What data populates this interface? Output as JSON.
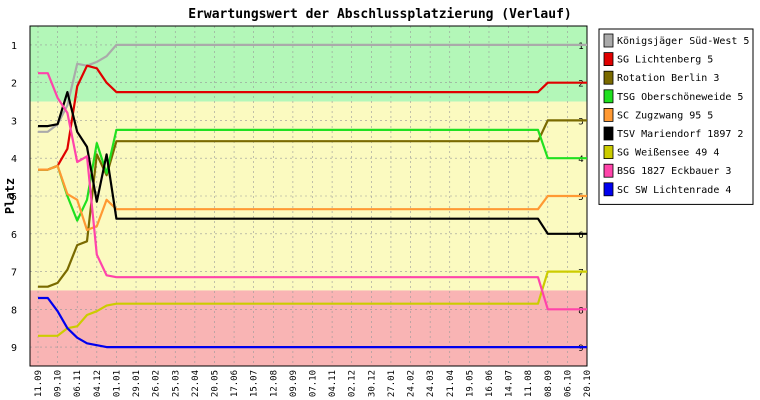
{
  "chart_data": {
    "type": "line",
    "title": "Erwartungswert der Abschlussplatzierung (Verlauf)",
    "xlabel": "",
    "ylabel": "Platz",
    "ylim": [
      1,
      9
    ],
    "y_inverted": true,
    "y_ticks": [
      "1",
      "2",
      "3",
      "4",
      "5",
      "6",
      "7",
      "8",
      "9"
    ],
    "categories": [
      "11.09",
      "09.10",
      "06.11",
      "04.12",
      "01.01",
      "29.01",
      "26.02",
      "25.03",
      "22.04",
      "20.05",
      "17.06",
      "15.07",
      "12.08",
      "09.09",
      "07.10",
      "04.11",
      "02.12",
      "30.12",
      "27.01",
      "24.02",
      "24.03",
      "21.04",
      "19.05",
      "16.06",
      "14.07",
      "11.08",
      "08.09",
      "06.10",
      "20.10"
    ],
    "x": [
      0,
      0.5,
      1,
      1.5,
      2,
      2.5,
      3,
      3.5,
      4,
      4.5,
      5,
      5.5,
      6,
      7,
      8,
      9,
      10,
      11,
      12,
      13,
      14,
      15,
      16,
      17,
      18,
      19,
      20,
      21,
      22,
      23,
      24,
      25,
      25.5,
      26,
      27,
      28
    ],
    "zones": [
      {
        "from": 0.5,
        "to": 2.5,
        "color": "#b3f7b8"
      },
      {
        "from": 2.5,
        "to": 7.5,
        "color": "#fbfac0"
      },
      {
        "from": 7.5,
        "to": 9.5,
        "color": "#f9b4b4"
      }
    ],
    "series": [
      {
        "name": "Königsjäger Süd-West 5",
        "color": "#aaaaaa",
        "values": [
          3.3,
          3.3,
          3.1,
          2.6,
          1.5,
          1.55,
          1.45,
          1.3,
          1.0,
          1,
          1,
          1,
          1,
          1,
          1,
          1,
          1,
          1,
          1,
          1,
          1,
          1,
          1,
          1,
          1,
          1,
          1,
          1,
          1,
          1,
          1,
          1,
          1,
          1,
          1,
          1
        ]
      },
      {
        "name": "SG Lichtenberg 5",
        "color": "#e00000",
        "values": [
          4.3,
          4.3,
          4.2,
          3.75,
          2.1,
          1.55,
          1.62,
          2.0,
          2.25,
          2.25,
          2.25,
          2.25,
          2.25,
          2.25,
          2.25,
          2.25,
          2.25,
          2.25,
          2.25,
          2.25,
          2.25,
          2.25,
          2.25,
          2.25,
          2.25,
          2.25,
          2.25,
          2.25,
          2.25,
          2.25,
          2.25,
          2.25,
          2.25,
          2.0,
          2.0,
          2.0
        ]
      },
      {
        "name": "Rotation Berlin 3",
        "color": "#7a6a00",
        "values": [
          7.4,
          7.4,
          7.3,
          6.95,
          6.3,
          6.2,
          3.9,
          4.45,
          3.55,
          3.55,
          3.55,
          3.55,
          3.55,
          3.55,
          3.55,
          3.55,
          3.55,
          3.55,
          3.55,
          3.55,
          3.55,
          3.55,
          3.55,
          3.55,
          3.55,
          3.55,
          3.55,
          3.55,
          3.55,
          3.55,
          3.55,
          3.55,
          3.55,
          3.0,
          3.0,
          3.0
        ]
      },
      {
        "name": "TSG Oberschöneweide 5",
        "color": "#20e020",
        "values": [
          4.3,
          4.3,
          4.2,
          5.0,
          5.65,
          5.1,
          3.6,
          4.4,
          3.25,
          3.25,
          3.25,
          3.25,
          3.25,
          3.25,
          3.25,
          3.25,
          3.25,
          3.25,
          3.25,
          3.25,
          3.25,
          3.25,
          3.25,
          3.25,
          3.25,
          3.25,
          3.25,
          3.25,
          3.25,
          3.25,
          3.25,
          3.25,
          3.25,
          4.0,
          4.0,
          4.0
        ]
      },
      {
        "name": "SC Zugzwang 95 5",
        "color": "#ff9933",
        "values": [
          4.3,
          4.3,
          4.2,
          4.95,
          5.1,
          5.9,
          5.8,
          5.1,
          5.35,
          5.35,
          5.35,
          5.35,
          5.35,
          5.35,
          5.35,
          5.35,
          5.35,
          5.35,
          5.35,
          5.35,
          5.35,
          5.35,
          5.35,
          5.35,
          5.35,
          5.35,
          5.35,
          5.35,
          5.35,
          5.35,
          5.35,
          5.35,
          5.35,
          5.0,
          5.0,
          5.0
        ]
      },
      {
        "name": "TSV Mariendorf 1897 2",
        "color": "#000000",
        "values": [
          3.15,
          3.15,
          3.1,
          2.25,
          3.3,
          3.7,
          5.15,
          3.9,
          5.6,
          5.6,
          5.6,
          5.6,
          5.6,
          5.6,
          5.6,
          5.6,
          5.6,
          5.6,
          5.6,
          5.6,
          5.6,
          5.6,
          5.6,
          5.6,
          5.6,
          5.6,
          5.6,
          5.6,
          5.6,
          5.6,
          5.6,
          5.6,
          5.6,
          6.0,
          6.0,
          6.0
        ]
      },
      {
        "name": "SG Weißensee 49 4",
        "color": "#cccc00",
        "values": [
          8.7,
          8.7,
          8.7,
          8.5,
          8.45,
          8.15,
          8.05,
          7.9,
          7.85,
          7.85,
          7.85,
          7.85,
          7.85,
          7.85,
          7.85,
          7.85,
          7.85,
          7.85,
          7.85,
          7.85,
          7.85,
          7.85,
          7.85,
          7.85,
          7.85,
          7.85,
          7.85,
          7.85,
          7.85,
          7.85,
          7.85,
          7.85,
          7.85,
          7.0,
          7.0,
          7.0
        ]
      },
      {
        "name": "BSG 1827 Eckbauer 3",
        "color": "#ff44aa",
        "values": [
          1.75,
          1.75,
          2.4,
          2.8,
          4.1,
          3.95,
          6.55,
          7.1,
          7.15,
          7.15,
          7.15,
          7.15,
          7.15,
          7.15,
          7.15,
          7.15,
          7.15,
          7.15,
          7.15,
          7.15,
          7.15,
          7.15,
          7.15,
          7.15,
          7.15,
          7.15,
          7.15,
          7.15,
          7.15,
          7.15,
          7.15,
          7.15,
          7.15,
          8.0,
          8.0,
          8.0
        ]
      },
      {
        "name": "SC SW Lichtenrade 4",
        "color": "#0000ee",
        "values": [
          7.7,
          7.7,
          8.05,
          8.5,
          8.75,
          8.9,
          8.95,
          9.0,
          9.0,
          9.0,
          9.0,
          9.0,
          9.0,
          9.0,
          9.0,
          9.0,
          9.0,
          9.0,
          9.0,
          9.0,
          9.0,
          9.0,
          9.0,
          9.0,
          9.0,
          9.0,
          9.0,
          9.0,
          9.0,
          9.0,
          9.0,
          9.0,
          9.0,
          9.0,
          9.0,
          9.0
        ]
      }
    ],
    "grid": true,
    "legend_position": "right"
  }
}
